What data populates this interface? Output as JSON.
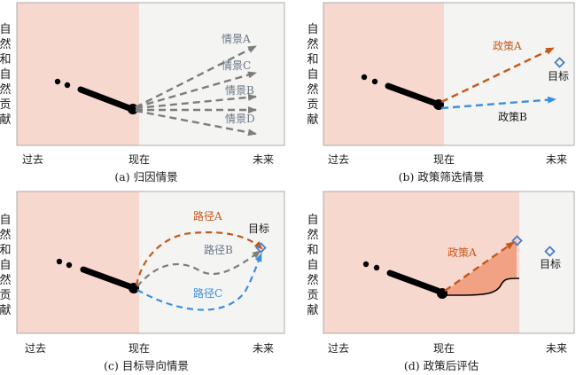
{
  "y_axis_label": [
    "自",
    "然",
    "和",
    "自",
    "然",
    "贡",
    "献"
  ],
  "ticks": {
    "past": "过去",
    "now": "现在",
    "future": "未来"
  },
  "colors": {
    "past_region": "#f7d8cf",
    "future_region": "#f4f4f3",
    "gray_arrow": "#7d7d7d",
    "gray_text": "#6a7685",
    "orange": "#c5581c",
    "blue": "#3b8fe0",
    "target_marker": "#4a7fc0",
    "fill_area": "#f1a285"
  },
  "panels": {
    "a": {
      "caption": "(a) 归因情景",
      "scenarios": [
        "情景A",
        "情景C",
        "情景B",
        "情景D"
      ]
    },
    "b": {
      "caption": "(b) 政策筛选情景",
      "policy_a": "政策A",
      "policy_b": "政策B",
      "target": "目标"
    },
    "c": {
      "caption": "(c) 目标导向情景",
      "path_a": "路径A",
      "path_b": "路径B",
      "path_c": "路径C",
      "target": "目标"
    },
    "d": {
      "caption": "(d) 政策后评估",
      "policy_a": "政策A",
      "target": "目标"
    }
  }
}
